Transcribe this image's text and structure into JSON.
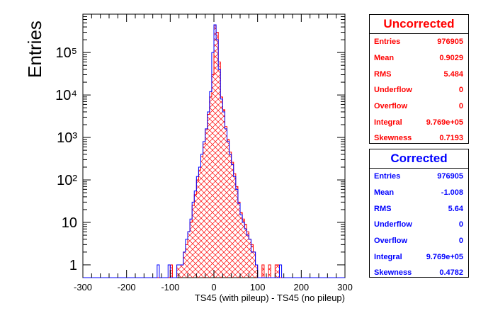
{
  "chart_data": {
    "type": "histogram",
    "xlabel": "TS45 (with pileup) - TS45 (no pileup)",
    "ylabel": "Entries",
    "xlim": [
      -300,
      300
    ],
    "ylog": true,
    "ylim": [
      0.5,
      800000
    ],
    "x_ticks": [
      "-300",
      "-200",
      "-100",
      "0",
      "100",
      "200",
      "300"
    ],
    "y_ticks": [
      {
        "value": 1,
        "label": "1"
      },
      {
        "value": 10,
        "label": "10"
      },
      {
        "value": 100,
        "label": "10²"
      },
      {
        "value": 1000,
        "label": "10³"
      },
      {
        "value": 10000,
        "label": "10⁴"
      },
      {
        "value": 100000,
        "label": "10⁵"
      }
    ],
    "bin_width": 5,
    "series": [
      {
        "name": "Uncorrected",
        "color": "#ff0000",
        "style": "crosshatch",
        "bins": [
          [
            -130,
            0
          ],
          [
            -125,
            0
          ],
          [
            -120,
            0
          ],
          [
            -115,
            0
          ],
          [
            -110,
            0
          ],
          [
            -105,
            0
          ],
          [
            -100,
            1
          ],
          [
            -95,
            0
          ],
          [
            -90,
            0
          ],
          [
            -85,
            1
          ],
          [
            -80,
            1
          ],
          [
            -75,
            1
          ],
          [
            -70,
            2
          ],
          [
            -65,
            3
          ],
          [
            -60,
            6
          ],
          [
            -55,
            10
          ],
          [
            -50,
            25
          ],
          [
            -45,
            45
          ],
          [
            -40,
            100
          ],
          [
            -35,
            170
          ],
          [
            -30,
            350
          ],
          [
            -25,
            700
          ],
          [
            -20,
            1500
          ],
          [
            -15,
            3500
          ],
          [
            -10,
            9000
          ],
          [
            -5,
            30000
          ],
          [
            0,
            420000
          ],
          [
            5,
            300000
          ],
          [
            10,
            60000
          ],
          [
            15,
            9000
          ],
          [
            20,
            4500
          ],
          [
            25,
            1800
          ],
          [
            30,
            900
          ],
          [
            35,
            450
          ],
          [
            40,
            260
          ],
          [
            45,
            140
          ],
          [
            50,
            70
          ],
          [
            55,
            30
          ],
          [
            60,
            17
          ],
          [
            65,
            12
          ],
          [
            70,
            9
          ],
          [
            75,
            6
          ],
          [
            80,
            4
          ],
          [
            85,
            3
          ],
          [
            90,
            2
          ],
          [
            95,
            1
          ],
          [
            100,
            0
          ],
          [
            105,
            0
          ],
          [
            110,
            1
          ],
          [
            115,
            0
          ],
          [
            120,
            0
          ],
          [
            125,
            1
          ],
          [
            130,
            0
          ],
          [
            135,
            0
          ],
          [
            140,
            1
          ],
          [
            145,
            1
          ],
          [
            150,
            0
          ]
        ]
      },
      {
        "name": "Corrected",
        "color": "#0000ff",
        "style": "outline",
        "bins": [
          [
            -130,
            1
          ],
          [
            -125,
            0
          ],
          [
            -120,
            0
          ],
          [
            -115,
            0
          ],
          [
            -110,
            0
          ],
          [
            -105,
            1
          ],
          [
            -100,
            0
          ],
          [
            -95,
            0
          ],
          [
            -90,
            0
          ],
          [
            -85,
            1
          ],
          [
            -80,
            1
          ],
          [
            -75,
            1
          ],
          [
            -70,
            2
          ],
          [
            -65,
            4
          ],
          [
            -60,
            6
          ],
          [
            -55,
            12
          ],
          [
            -50,
            30
          ],
          [
            -45,
            55
          ],
          [
            -40,
            120
          ],
          [
            -35,
            200
          ],
          [
            -30,
            400
          ],
          [
            -25,
            800
          ],
          [
            -20,
            1600
          ],
          [
            -15,
            4000
          ],
          [
            -10,
            12000
          ],
          [
            -5,
            100000
          ],
          [
            0,
            450000
          ],
          [
            5,
            200000
          ],
          [
            10,
            40000
          ],
          [
            15,
            8000
          ],
          [
            20,
            4000
          ],
          [
            25,
            1600
          ],
          [
            30,
            800
          ],
          [
            35,
            400
          ],
          [
            40,
            230
          ],
          [
            45,
            120
          ],
          [
            50,
            60
          ],
          [
            55,
            28
          ],
          [
            60,
            15
          ],
          [
            65,
            10
          ],
          [
            70,
            7
          ],
          [
            75,
            5
          ],
          [
            80,
            4
          ],
          [
            85,
            2
          ],
          [
            90,
            2
          ],
          [
            95,
            1
          ],
          [
            100,
            0
          ],
          [
            105,
            0
          ],
          [
            110,
            0
          ],
          [
            115,
            0
          ],
          [
            120,
            0
          ],
          [
            125,
            0
          ],
          [
            130,
            0
          ],
          [
            135,
            0
          ],
          [
            140,
            0
          ],
          [
            145,
            0
          ],
          [
            150,
            1
          ]
        ]
      }
    ]
  },
  "stats": {
    "uncorrected": {
      "title": "Uncorrected",
      "rows": [
        {
          "label": "Entries",
          "value": "976905"
        },
        {
          "label": "Mean",
          "value": "0.9029"
        },
        {
          "label": "RMS",
          "value": "5.484"
        },
        {
          "label": "Underflow",
          "value": "0"
        },
        {
          "label": "Overflow",
          "value": "0"
        },
        {
          "label": "Integral",
          "value": "9.769e+05"
        },
        {
          "label": "Skewness",
          "value": "0.7193"
        }
      ]
    },
    "corrected": {
      "title": "Corrected",
      "rows": [
        {
          "label": "Entries",
          "value": "976905"
        },
        {
          "label": "Mean",
          "value": "-1.008"
        },
        {
          "label": "RMS",
          "value": "5.64"
        },
        {
          "label": "Underflow",
          "value": "0"
        },
        {
          "label": "Overflow",
          "value": "0"
        },
        {
          "label": "Integral",
          "value": "9.769e+05"
        },
        {
          "label": "Skewness",
          "value": "0.4782"
        }
      ]
    }
  }
}
